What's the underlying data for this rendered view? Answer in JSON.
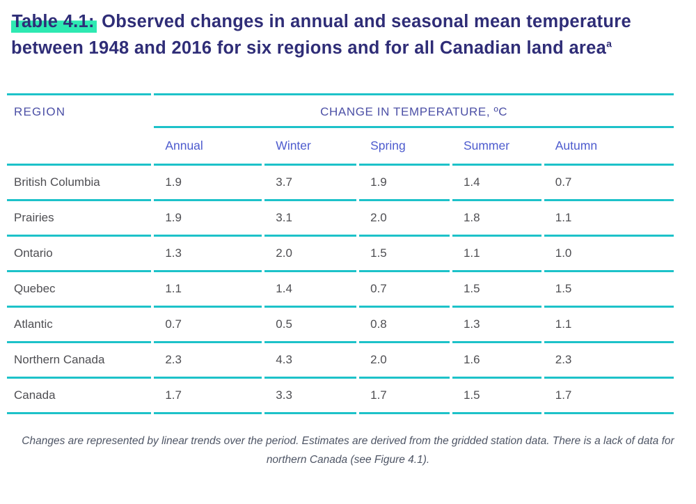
{
  "title": {
    "label": "Table 4.1:",
    "text": " Observed changes in annual and seasonal mean temperature between 1948 and 2016 for six regions and for all Canadian land area",
    "superscript": "a"
  },
  "table": {
    "region_header": "REGION",
    "group_header": "CHANGE IN TEMPERATURE, ºC",
    "columns": [
      "Annual",
      "Winter",
      "Spring",
      "Summer",
      "Autumn"
    ],
    "rows": [
      {
        "region": "British Columbia",
        "values": [
          "1.9",
          "3.7",
          "1.9",
          "1.4",
          "0.7"
        ]
      },
      {
        "region": "Prairies",
        "values": [
          "1.9",
          "3.1",
          "2.0",
          "1.8",
          "1.1"
        ]
      },
      {
        "region": "Ontario",
        "values": [
          "1.3",
          "2.0",
          "1.5",
          "1.1",
          "1.0"
        ]
      },
      {
        "region": "Quebec",
        "values": [
          "1.1",
          "1.4",
          "0.7",
          "1.5",
          "1.5"
        ]
      },
      {
        "region": "Atlantic",
        "values": [
          "0.7",
          "0.5",
          "0.8",
          "1.3",
          "1.1"
        ]
      },
      {
        "region": "Northern Canada",
        "values": [
          "2.3",
          "4.3",
          "2.0",
          "1.6",
          "2.3"
        ]
      },
      {
        "region": "Canada",
        "values": [
          "1.7",
          "3.3",
          "1.7",
          "1.5",
          "1.7"
        ]
      }
    ]
  },
  "footnote": "Changes are represented by linear trends over the period. Estimates are derived from the gridded station data. There is a lack of data for northern Canada (see Figure 4.1).",
  "colors": {
    "title_navy": "#2f2d77",
    "highlight_mint": "#2ee9b2",
    "rule_teal": "#1dc2c9",
    "header_blue_purple": "#4c50a6",
    "subheader_blue": "#4d5bce",
    "body_text_gray": "#4e4e52",
    "footnote_gray": "#4e5565"
  }
}
